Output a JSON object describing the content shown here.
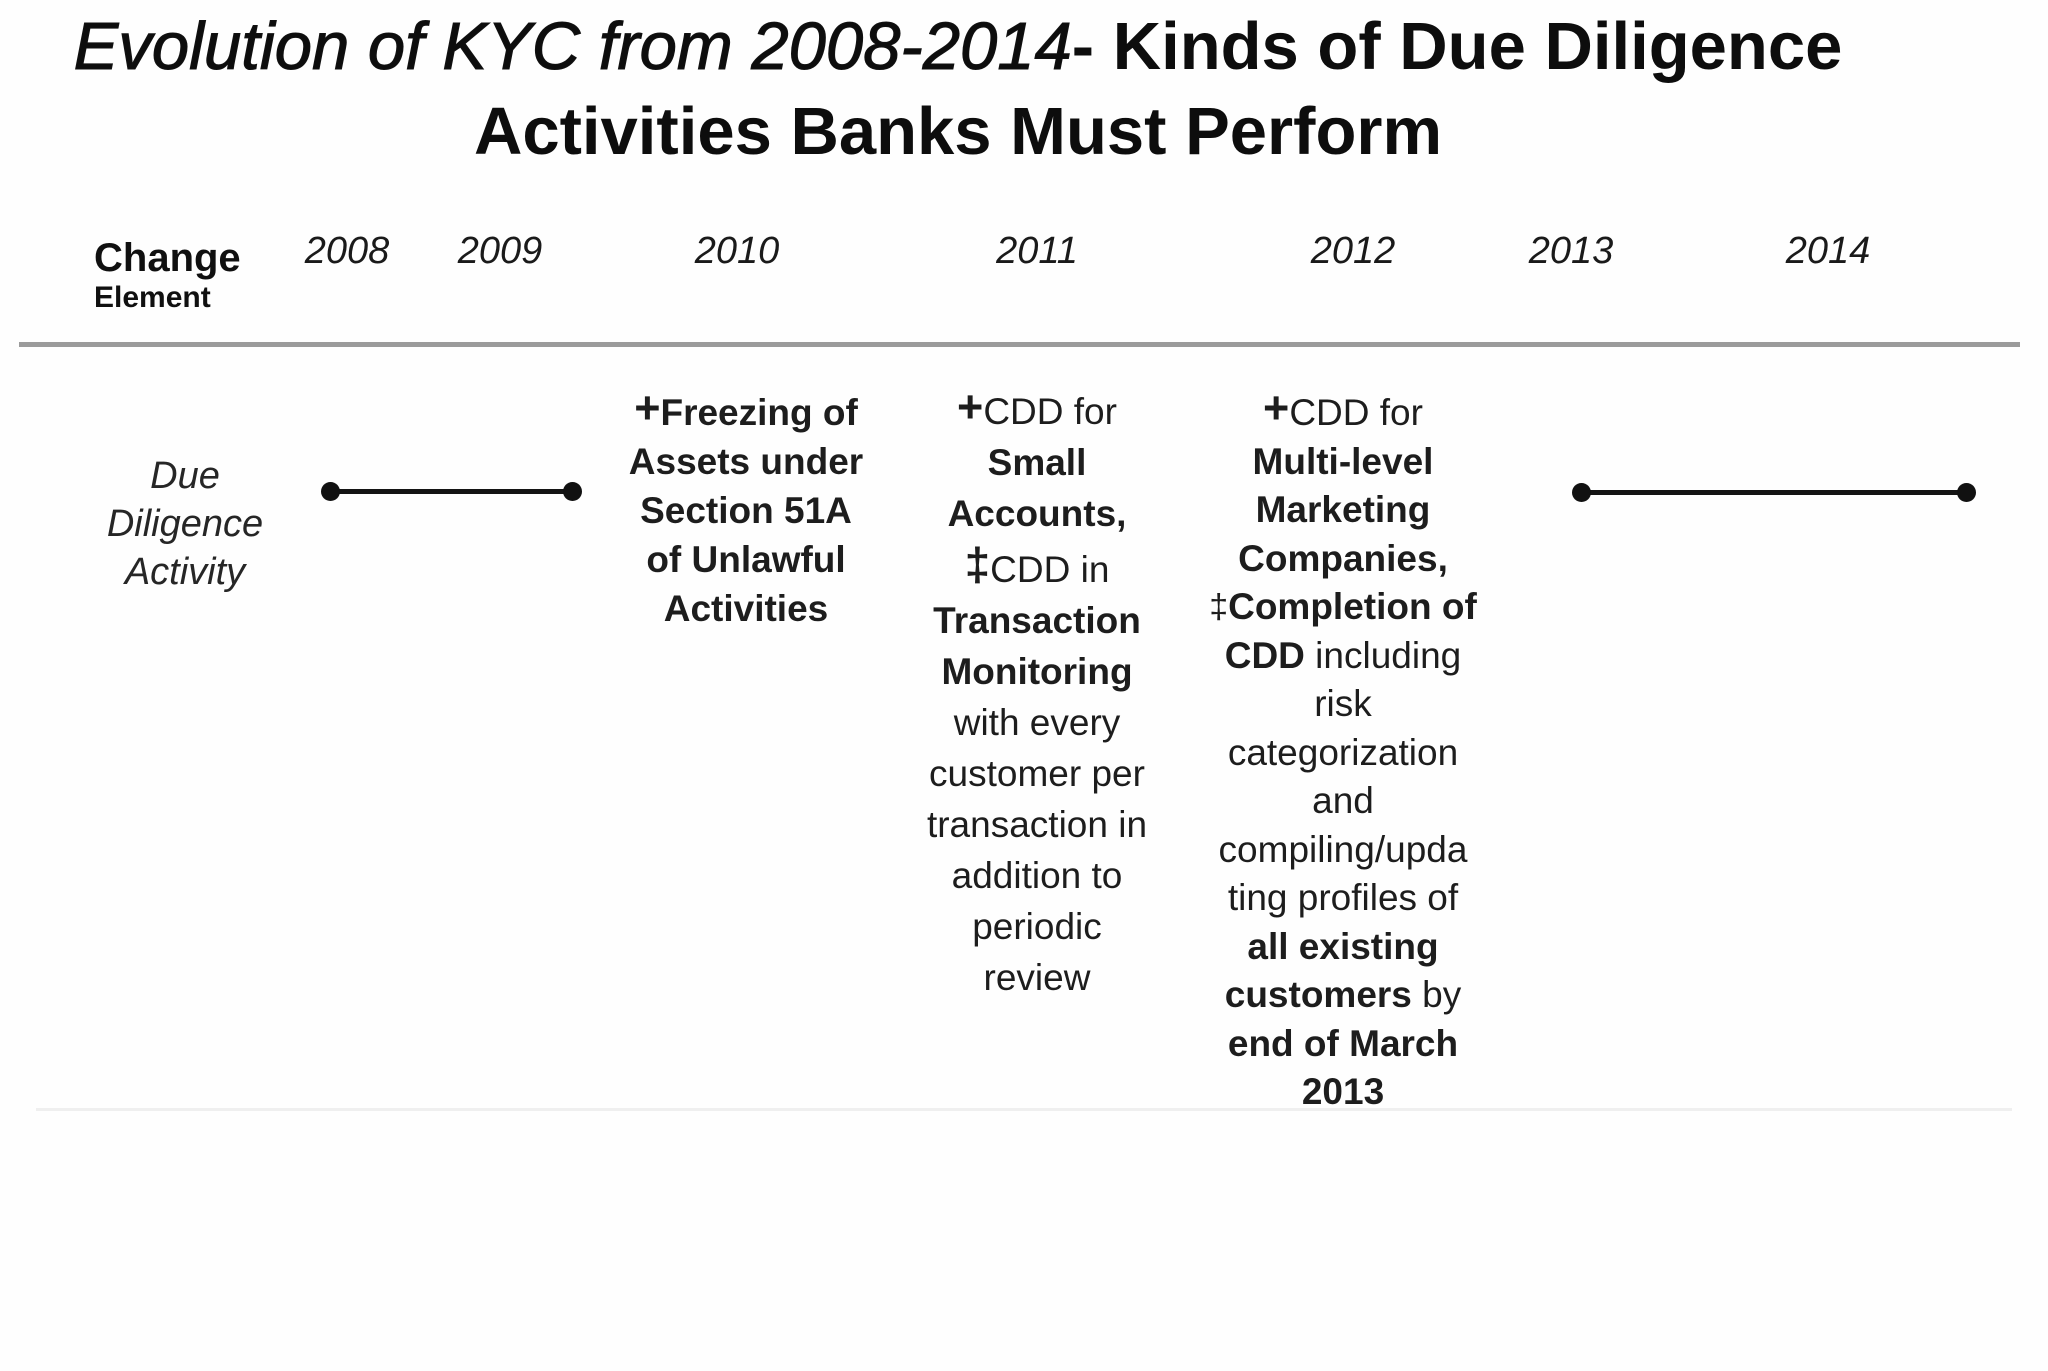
{
  "slide": {
    "title": {
      "line1_italic": "Evolution of KYC from 2008-2014",
      "line1_bold": "- Kinds of Due Diligence",
      "line2_bold": "Activities Banks Must Perform"
    },
    "header": {
      "row_label_line1": "Change",
      "row_label_line2": "Element",
      "years": [
        "2008",
        "2009",
        "2010",
        "2011",
        "2012",
        "2013",
        "2014"
      ]
    },
    "row_label_lines": [
      "Due",
      "Diligence",
      "Activity"
    ],
    "marker_glyphs": {
      "new_item": "+",
      "changed_item": "‡"
    },
    "colors": {
      "text": "#161616",
      "header_rule": "#9b9b9b",
      "connector": "#141414"
    },
    "activities": [
      {
        "year": "2010",
        "lines": [
          [
            {
              "t": "+",
              "s": "plus"
            },
            {
              "t": "Freezing of",
              "s": "bold"
            }
          ],
          [
            {
              "t": "Assets under",
              "s": "bold"
            }
          ],
          [
            {
              "t": "Section 51A",
              "s": "bold"
            }
          ],
          [
            {
              "t": "of Unlawful",
              "s": "bold"
            }
          ],
          [
            {
              "t": "Activities",
              "s": "bold"
            }
          ]
        ]
      },
      {
        "year": "2011",
        "lines": [
          [
            {
              "t": "+",
              "s": "plus"
            },
            {
              "t": "CDD for",
              "s": "regular"
            }
          ],
          [
            {
              "t": "Small",
              "s": "bold"
            }
          ],
          [
            {
              "t": "Accounts,",
              "s": "bold"
            }
          ],
          [
            {
              "t": "‡",
              "s": "dagger"
            },
            {
              "t": "CDD in",
              "s": "regular"
            }
          ],
          [
            {
              "t": "Transaction",
              "s": "bold"
            }
          ],
          [
            {
              "t": "Monitoring",
              "s": "bold"
            }
          ],
          [
            {
              "t": "with every",
              "s": "regular"
            }
          ],
          [
            {
              "t": "customer per",
              "s": "regular"
            }
          ],
          [
            {
              "t": "transaction in",
              "s": "regular"
            }
          ],
          [
            {
              "t": "addition to",
              "s": "regular"
            }
          ],
          [
            {
              "t": "periodic",
              "s": "regular"
            }
          ],
          [
            {
              "t": "review",
              "s": "regular"
            }
          ]
        ]
      },
      {
        "year": "2012",
        "lines": [
          [
            {
              "t": "+",
              "s": "plus"
            },
            {
              "t": "CDD for",
              "s": "regular"
            }
          ],
          [
            {
              "t": "Multi-level",
              "s": "bold"
            }
          ],
          [
            {
              "t": "Marketing",
              "s": "bold"
            }
          ],
          [
            {
              "t": "Companies,",
              "s": "bold"
            }
          ],
          [
            {
              "t": "‡",
              "s": "dagger-small"
            },
            {
              "t": "Completion of",
              "s": "bold"
            }
          ],
          [
            {
              "t": "CDD",
              "s": "bold"
            },
            {
              "t": " including",
              "s": "regular"
            }
          ],
          [
            {
              "t": "risk",
              "s": "regular"
            }
          ],
          [
            {
              "t": "categorization",
              "s": "regular"
            }
          ],
          [
            {
              "t": "and",
              "s": "regular"
            }
          ],
          [
            {
              "t": "compiling/upda",
              "s": "regular"
            }
          ],
          [
            {
              "t": "ting profiles of",
              "s": "regular"
            }
          ],
          [
            {
              "t": "all existing",
              "s": "bold"
            }
          ],
          [
            {
              "t": "customers",
              "s": "bold"
            },
            {
              "t": " by",
              "s": "regular"
            }
          ],
          [
            {
              "t": "end of March",
              "s": "bold"
            }
          ],
          [
            {
              "t": "2013",
              "s": "bold"
            }
          ]
        ]
      }
    ]
  }
}
